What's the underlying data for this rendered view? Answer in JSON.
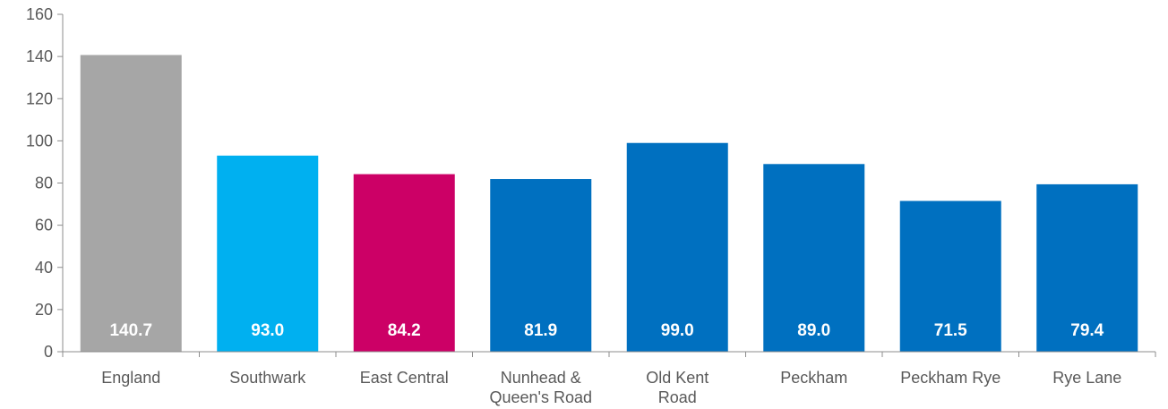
{
  "chart_data": {
    "type": "bar",
    "title": "",
    "xlabel": "",
    "ylabel": "",
    "ylim": [
      0,
      160
    ],
    "yticks": [
      0,
      20,
      40,
      60,
      80,
      100,
      120,
      140,
      160
    ],
    "grid": false,
    "categories": [
      [
        "England"
      ],
      [
        "Southwark"
      ],
      [
        "East Central"
      ],
      [
        "Nunhead &",
        "Queen's Road"
      ],
      [
        "Old Kent",
        "Road"
      ],
      [
        "Peckham"
      ],
      [
        "Peckham Rye"
      ],
      [
        "Rye Lane"
      ]
    ],
    "values": [
      140.7,
      93.0,
      84.2,
      81.9,
      99.0,
      89.0,
      71.5,
      79.4
    ],
    "data_labels": [
      "140.7",
      "93.0",
      "84.2",
      "81.9",
      "99.0",
      "89.0",
      "71.5",
      "79.4"
    ],
    "colors": [
      "#A6A6A6",
      "#00B0F0",
      "#CC0066",
      "#0070C0",
      "#0070C0",
      "#0070C0",
      "#0070C0",
      "#0070C0"
    ]
  }
}
